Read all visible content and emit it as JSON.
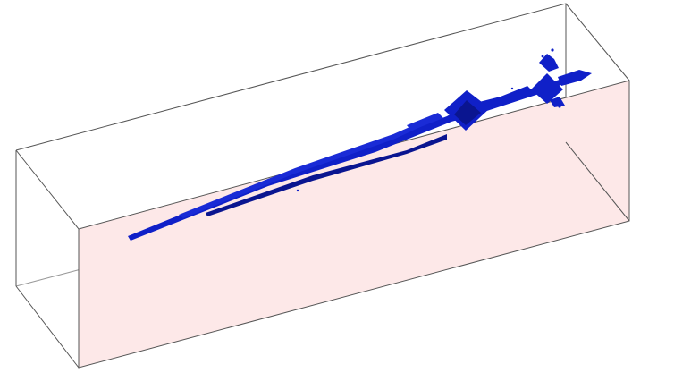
{
  "colors": {
    "background": "#ffffff",
    "box_edge": "#555555",
    "front_face_fill": "#fde8e8",
    "structure_fill": "#1020c8",
    "structure_dark": "#0a1590"
  }
}
